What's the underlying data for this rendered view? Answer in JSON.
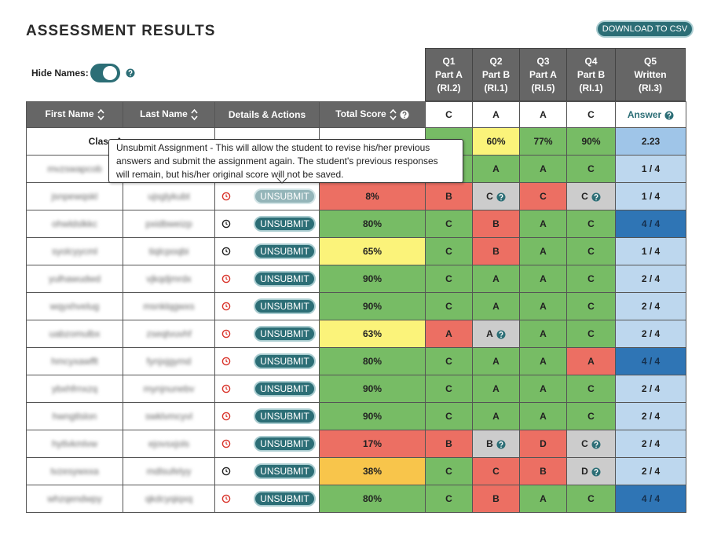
{
  "header": {
    "title": "ASSESSMENT RESULTS",
    "download_button": "DOWNLOAD TO CSV",
    "hide_names_label": "Hide Names:"
  },
  "questions": [
    {
      "lines": [
        "Q1",
        "Part A",
        "(RI.2)"
      ],
      "key": "C"
    },
    {
      "lines": [
        "Q2",
        "Part B",
        "(RI.1)"
      ],
      "key": "A"
    },
    {
      "lines": [
        "Q3",
        "Part A",
        "(RI.5)"
      ],
      "key": "A"
    },
    {
      "lines": [
        "Q4",
        "Part B",
        "(RI.1)"
      ],
      "key": "C"
    },
    {
      "lines": [
        "Q5",
        "Written",
        "(RI.3)"
      ],
      "key": "Answer"
    }
  ],
  "columns": [
    "First Name",
    "Last Name",
    "Details & Actions",
    "Total Score"
  ],
  "tooltip": [
    "Unsubmit Assignment - This will allow the student to revise his/her previous",
    "answers and submit the assignment again. The student's previous responses",
    "will remain, but his/her original score will not be saved."
  ],
  "class_average": {
    "label": "Class Average",
    "score": {
      "text": null,
      "color": "#ffffff"
    },
    "answers": [
      {
        "text": null,
        "color": "#77bc65"
      },
      {
        "text": "60%",
        "color": "#fbf37a"
      },
      {
        "text": "77%",
        "color": "#77bc65"
      },
      {
        "text": "90%",
        "color": "#77bc65"
      },
      {
        "text": "2.23",
        "color": "#9fc5e8"
      }
    ]
  },
  "rows": [
    {
      "first": "mvzswapcob",
      "last": null,
      "clock": "#222",
      "action": "UNSUBMIT",
      "faded": false,
      "score": {
        "text": null,
        "color": "#77bc65"
      },
      "answers": [
        {
          "text": null,
          "color": "#77bc65"
        },
        {
          "text": "A",
          "color": "#77bc65"
        },
        {
          "text": "A",
          "color": "#77bc65"
        },
        {
          "text": "C",
          "color": "#77bc65"
        },
        {
          "text": "1 / 4",
          "color": "#bdd7ee"
        }
      ]
    },
    {
      "first": "jsnpewqskl",
      "last": "ujsglykubt",
      "clock": "#d9342b",
      "action": "UNSUBMIT",
      "faded": true,
      "score": {
        "text": "8%",
        "color": "#ec6f63"
      },
      "answers": [
        {
          "text": "B",
          "color": "#ec6f63"
        },
        {
          "text": "C",
          "color": "#cccccc",
          "help": true
        },
        {
          "text": "C",
          "color": "#ec6f63"
        },
        {
          "text": "C",
          "color": "#cccccc",
          "help": true
        },
        {
          "text": "1 / 4",
          "color": "#bdd7ee"
        }
      ]
    },
    {
      "first": "ohwldslkkc",
      "last": "pxidbweizp",
      "clock": "#222",
      "action": "UNSUBMIT",
      "faded": false,
      "score": {
        "text": "80%",
        "color": "#77bc65"
      },
      "answers": [
        {
          "text": "C",
          "color": "#77bc65"
        },
        {
          "text": "B",
          "color": "#ec6f63"
        },
        {
          "text": "A",
          "color": "#77bc65"
        },
        {
          "text": "C",
          "color": "#77bc65"
        },
        {
          "text": "4 / 4",
          "color": "#2f75b5"
        }
      ]
    },
    {
      "first": "syolcyycml",
      "last": "tiqlcpoqbi",
      "clock": "#222",
      "action": "UNSUBMIT",
      "faded": false,
      "score": {
        "text": "65%",
        "color": "#fbf37a"
      },
      "answers": [
        {
          "text": "C",
          "color": "#77bc65"
        },
        {
          "text": "B",
          "color": "#ec6f63"
        },
        {
          "text": "A",
          "color": "#77bc65"
        },
        {
          "text": "C",
          "color": "#77bc65"
        },
        {
          "text": "1 / 4",
          "color": "#bdd7ee"
        }
      ]
    },
    {
      "first": "yulhawudwd",
      "last": "vjkqdjmrdx",
      "clock": "#d9342b",
      "action": "UNSUBMIT",
      "faded": false,
      "score": {
        "text": "90%",
        "color": "#77bc65"
      },
      "answers": [
        {
          "text": "C",
          "color": "#77bc65"
        },
        {
          "text": "A",
          "color": "#77bc65"
        },
        {
          "text": "A",
          "color": "#77bc65"
        },
        {
          "text": "C",
          "color": "#77bc65"
        },
        {
          "text": "2 / 4",
          "color": "#bdd7ee"
        }
      ]
    },
    {
      "first": "wqyxhvelug",
      "last": "msnklqgwxs",
      "clock": "#d9342b",
      "action": "UNSUBMIT",
      "faded": false,
      "score": {
        "text": "90%",
        "color": "#77bc65"
      },
      "answers": [
        {
          "text": "C",
          "color": "#77bc65"
        },
        {
          "text": "A",
          "color": "#77bc65"
        },
        {
          "text": "A",
          "color": "#77bc65"
        },
        {
          "text": "C",
          "color": "#77bc65"
        },
        {
          "text": "2 / 4",
          "color": "#bdd7ee"
        }
      ]
    },
    {
      "first": "uabzomulbx",
      "last": "zseqtvuvhf",
      "clock": "#d9342b",
      "action": "UNSUBMIT",
      "faded": false,
      "score": {
        "text": "63%",
        "color": "#fbf37a"
      },
      "answers": [
        {
          "text": "A",
          "color": "#ec6f63"
        },
        {
          "text": "A",
          "color": "#cccccc",
          "help": true
        },
        {
          "text": "A",
          "color": "#77bc65"
        },
        {
          "text": "C",
          "color": "#77bc65"
        },
        {
          "text": "2 / 4",
          "color": "#bdd7ee"
        }
      ]
    },
    {
      "first": "hmcyxawfft",
      "last": "fynjxjgymd",
      "clock": "#d9342b",
      "action": "UNSUBMIT",
      "faded": false,
      "score": {
        "text": "80%",
        "color": "#77bc65"
      },
      "answers": [
        {
          "text": "C",
          "color": "#77bc65"
        },
        {
          "text": "A",
          "color": "#77bc65"
        },
        {
          "text": "A",
          "color": "#77bc65"
        },
        {
          "text": "A",
          "color": "#ec6f63"
        },
        {
          "text": "4 / 4",
          "color": "#2f75b5"
        }
      ]
    },
    {
      "first": "ybxhfrnxzq",
      "last": "mynjnunebv",
      "clock": "#d9342b",
      "action": "UNSUBMIT",
      "faded": false,
      "score": {
        "text": "90%",
        "color": "#77bc65"
      },
      "answers": [
        {
          "text": "C",
          "color": "#77bc65"
        },
        {
          "text": "A",
          "color": "#77bc65"
        },
        {
          "text": "A",
          "color": "#77bc65"
        },
        {
          "text": "C",
          "color": "#77bc65"
        },
        {
          "text": "2 / 4",
          "color": "#bdd7ee"
        }
      ]
    },
    {
      "first": "hwngtlslon",
      "last": "swklvmcyvl",
      "clock": "#d9342b",
      "action": "UNSUBMIT",
      "faded": false,
      "score": {
        "text": "90%",
        "color": "#77bc65"
      },
      "answers": [
        {
          "text": "C",
          "color": "#77bc65"
        },
        {
          "text": "A",
          "color": "#77bc65"
        },
        {
          "text": "A",
          "color": "#77bc65"
        },
        {
          "text": "C",
          "color": "#77bc65"
        },
        {
          "text": "2 / 4",
          "color": "#bdd7ee"
        }
      ]
    },
    {
      "first": "hytlvkmlvw",
      "last": "ejovsxjols",
      "clock": "#d9342b",
      "action": "UNSUBMIT",
      "faded": false,
      "score": {
        "text": "17%",
        "color": "#ec6f63"
      },
      "answers": [
        {
          "text": "B",
          "color": "#ec6f63"
        },
        {
          "text": "B",
          "color": "#cccccc",
          "help": true
        },
        {
          "text": "D",
          "color": "#ec6f63"
        },
        {
          "text": "C",
          "color": "#cccccc",
          "help": true
        },
        {
          "text": "2 / 4",
          "color": "#bdd7ee"
        }
      ]
    },
    {
      "first": "tvzesywxxa",
      "last": "mdlsufelyy",
      "clock": "#222",
      "action": "UNSUBMIT",
      "faded": false,
      "score": {
        "text": "38%",
        "color": "#f8c54b"
      },
      "answers": [
        {
          "text": "C",
          "color": "#77bc65"
        },
        {
          "text": "C",
          "color": "#ec6f63"
        },
        {
          "text": "B",
          "color": "#ec6f63"
        },
        {
          "text": "D",
          "color": "#cccccc",
          "help": true
        },
        {
          "text": "2 / 4",
          "color": "#bdd7ee"
        }
      ]
    },
    {
      "first": "whzqendwpy",
      "last": "qkdcyqiqxq",
      "clock": "#d9342b",
      "action": "UNSUBMIT",
      "faded": false,
      "score": {
        "text": "80%",
        "color": "#77bc65"
      },
      "answers": [
        {
          "text": "C",
          "color": "#77bc65"
        },
        {
          "text": "B",
          "color": "#ec6f63"
        },
        {
          "text": "A",
          "color": "#77bc65"
        },
        {
          "text": "C",
          "color": "#77bc65"
        },
        {
          "text": "4 / 4",
          "color": "#2f75b5"
        }
      ]
    }
  ]
}
